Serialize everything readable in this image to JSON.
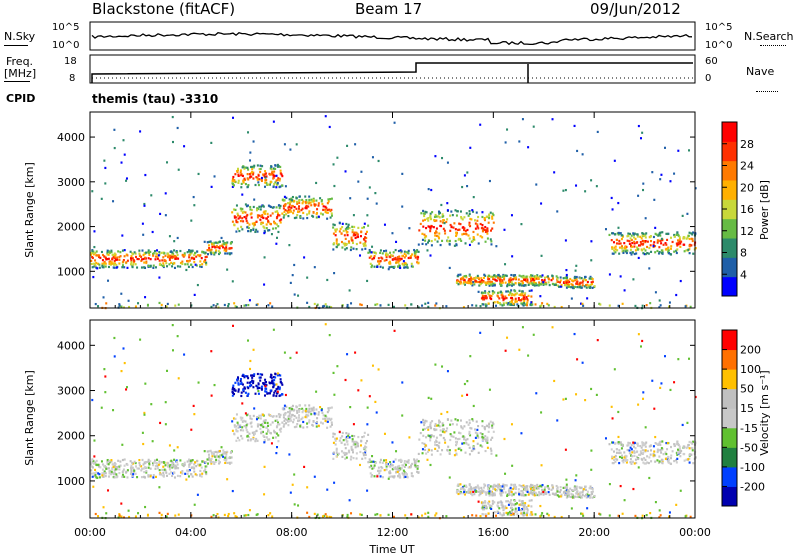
{
  "header": {
    "station": "Blackstone (fitACF)",
    "beam": "Beam 17",
    "date": "09/Jun/2012"
  },
  "sky_panel": {
    "left_label": "N.Sky",
    "right_label": "N.Search",
    "left_ticks": [
      "10^5",
      "10^0"
    ],
    "right_ticks": [
      "10^5",
      "10^0"
    ]
  },
  "freq_panel": {
    "left_label_1": "Freq.",
    "left_label_2": "[MHz]",
    "right_label": "Nave",
    "left_ticks": [
      "18",
      "8"
    ],
    "right_ticks": [
      "60",
      "0"
    ]
  },
  "cpid": {
    "label": "CPID",
    "text": "themis (tau) -3310"
  },
  "chart_data": [
    {
      "type": "heatmap",
      "quantity": "power",
      "ylabel": "Slant Range [km]",
      "ylim": [
        180,
        4560
      ],
      "yticks": [
        1000,
        2000,
        3000,
        4000
      ],
      "xlim_hours": [
        0,
        24
      ],
      "colorbar": {
        "label": "Power [dB]",
        "ticks": [
          "28",
          "24",
          "20",
          "16",
          "12",
          "8",
          "4"
        ],
        "colors": [
          "#0000ff",
          "#1f5fa8",
          "#2c8a6a",
          "#66bb44",
          "#c8d83a",
          "#ffb000",
          "#ff7a00",
          "#ff3000",
          "#ff0000"
        ]
      },
      "echo_regions": [
        {
          "t": [
            0.0,
            4.6
          ],
          "r": [
            1100,
            1500
          ]
        },
        {
          "t": [
            4.6,
            5.6
          ],
          "r": [
            1400,
            1700
          ]
        },
        {
          "t": [
            5.6,
            7.6
          ],
          "r": [
            1900,
            2500
          ]
        },
        {
          "t": [
            7.6,
            9.6
          ],
          "r": [
            2200,
            2700
          ]
        },
        {
          "t": [
            9.6,
            11.0
          ],
          "r": [
            1500,
            2100
          ]
        },
        {
          "t": [
            11.0,
            13.0
          ],
          "r": [
            1100,
            1500
          ]
        },
        {
          "t": [
            13.0,
            16.0
          ],
          "r": [
            1600,
            2400
          ]
        },
        {
          "t": [
            14.5,
            18.5
          ],
          "r": [
            700,
            950
          ]
        },
        {
          "t": [
            15.5,
            17.5
          ],
          "r": [
            250,
            600
          ]
        },
        {
          "t": [
            18.5,
            20.0
          ],
          "r": [
            650,
            900
          ]
        },
        {
          "t": [
            20.5,
            24.0
          ],
          "r": [
            1400,
            1900
          ]
        },
        {
          "t": [
            5.6,
            7.6
          ],
          "r": [
            2900,
            3400
          ]
        }
      ]
    },
    {
      "type": "heatmap",
      "quantity": "velocity",
      "ylabel": "Slant Range [km]",
      "ylim": [
        180,
        4560
      ],
      "yticks": [
        1000,
        2000,
        3000,
        4000
      ],
      "xlabel": "Time UT",
      "xticks": [
        "00:00",
        "04:00",
        "08:00",
        "12:00",
        "16:00",
        "20:00",
        "00:00"
      ],
      "xlim_hours": [
        0,
        24
      ],
      "colorbar": {
        "label": "Velocity [m s⁻¹]",
        "ticks": [
          "200",
          "100",
          "50",
          "15",
          "-15",
          "-50",
          "-100",
          "-200"
        ],
        "colors": [
          "#0000b0",
          "#0040ff",
          "#208040",
          "#60c030",
          "#c8c8c8",
          "#c0c0c0",
          "#ffc000",
          "#ff7000",
          "#ff0000"
        ]
      }
    }
  ]
}
